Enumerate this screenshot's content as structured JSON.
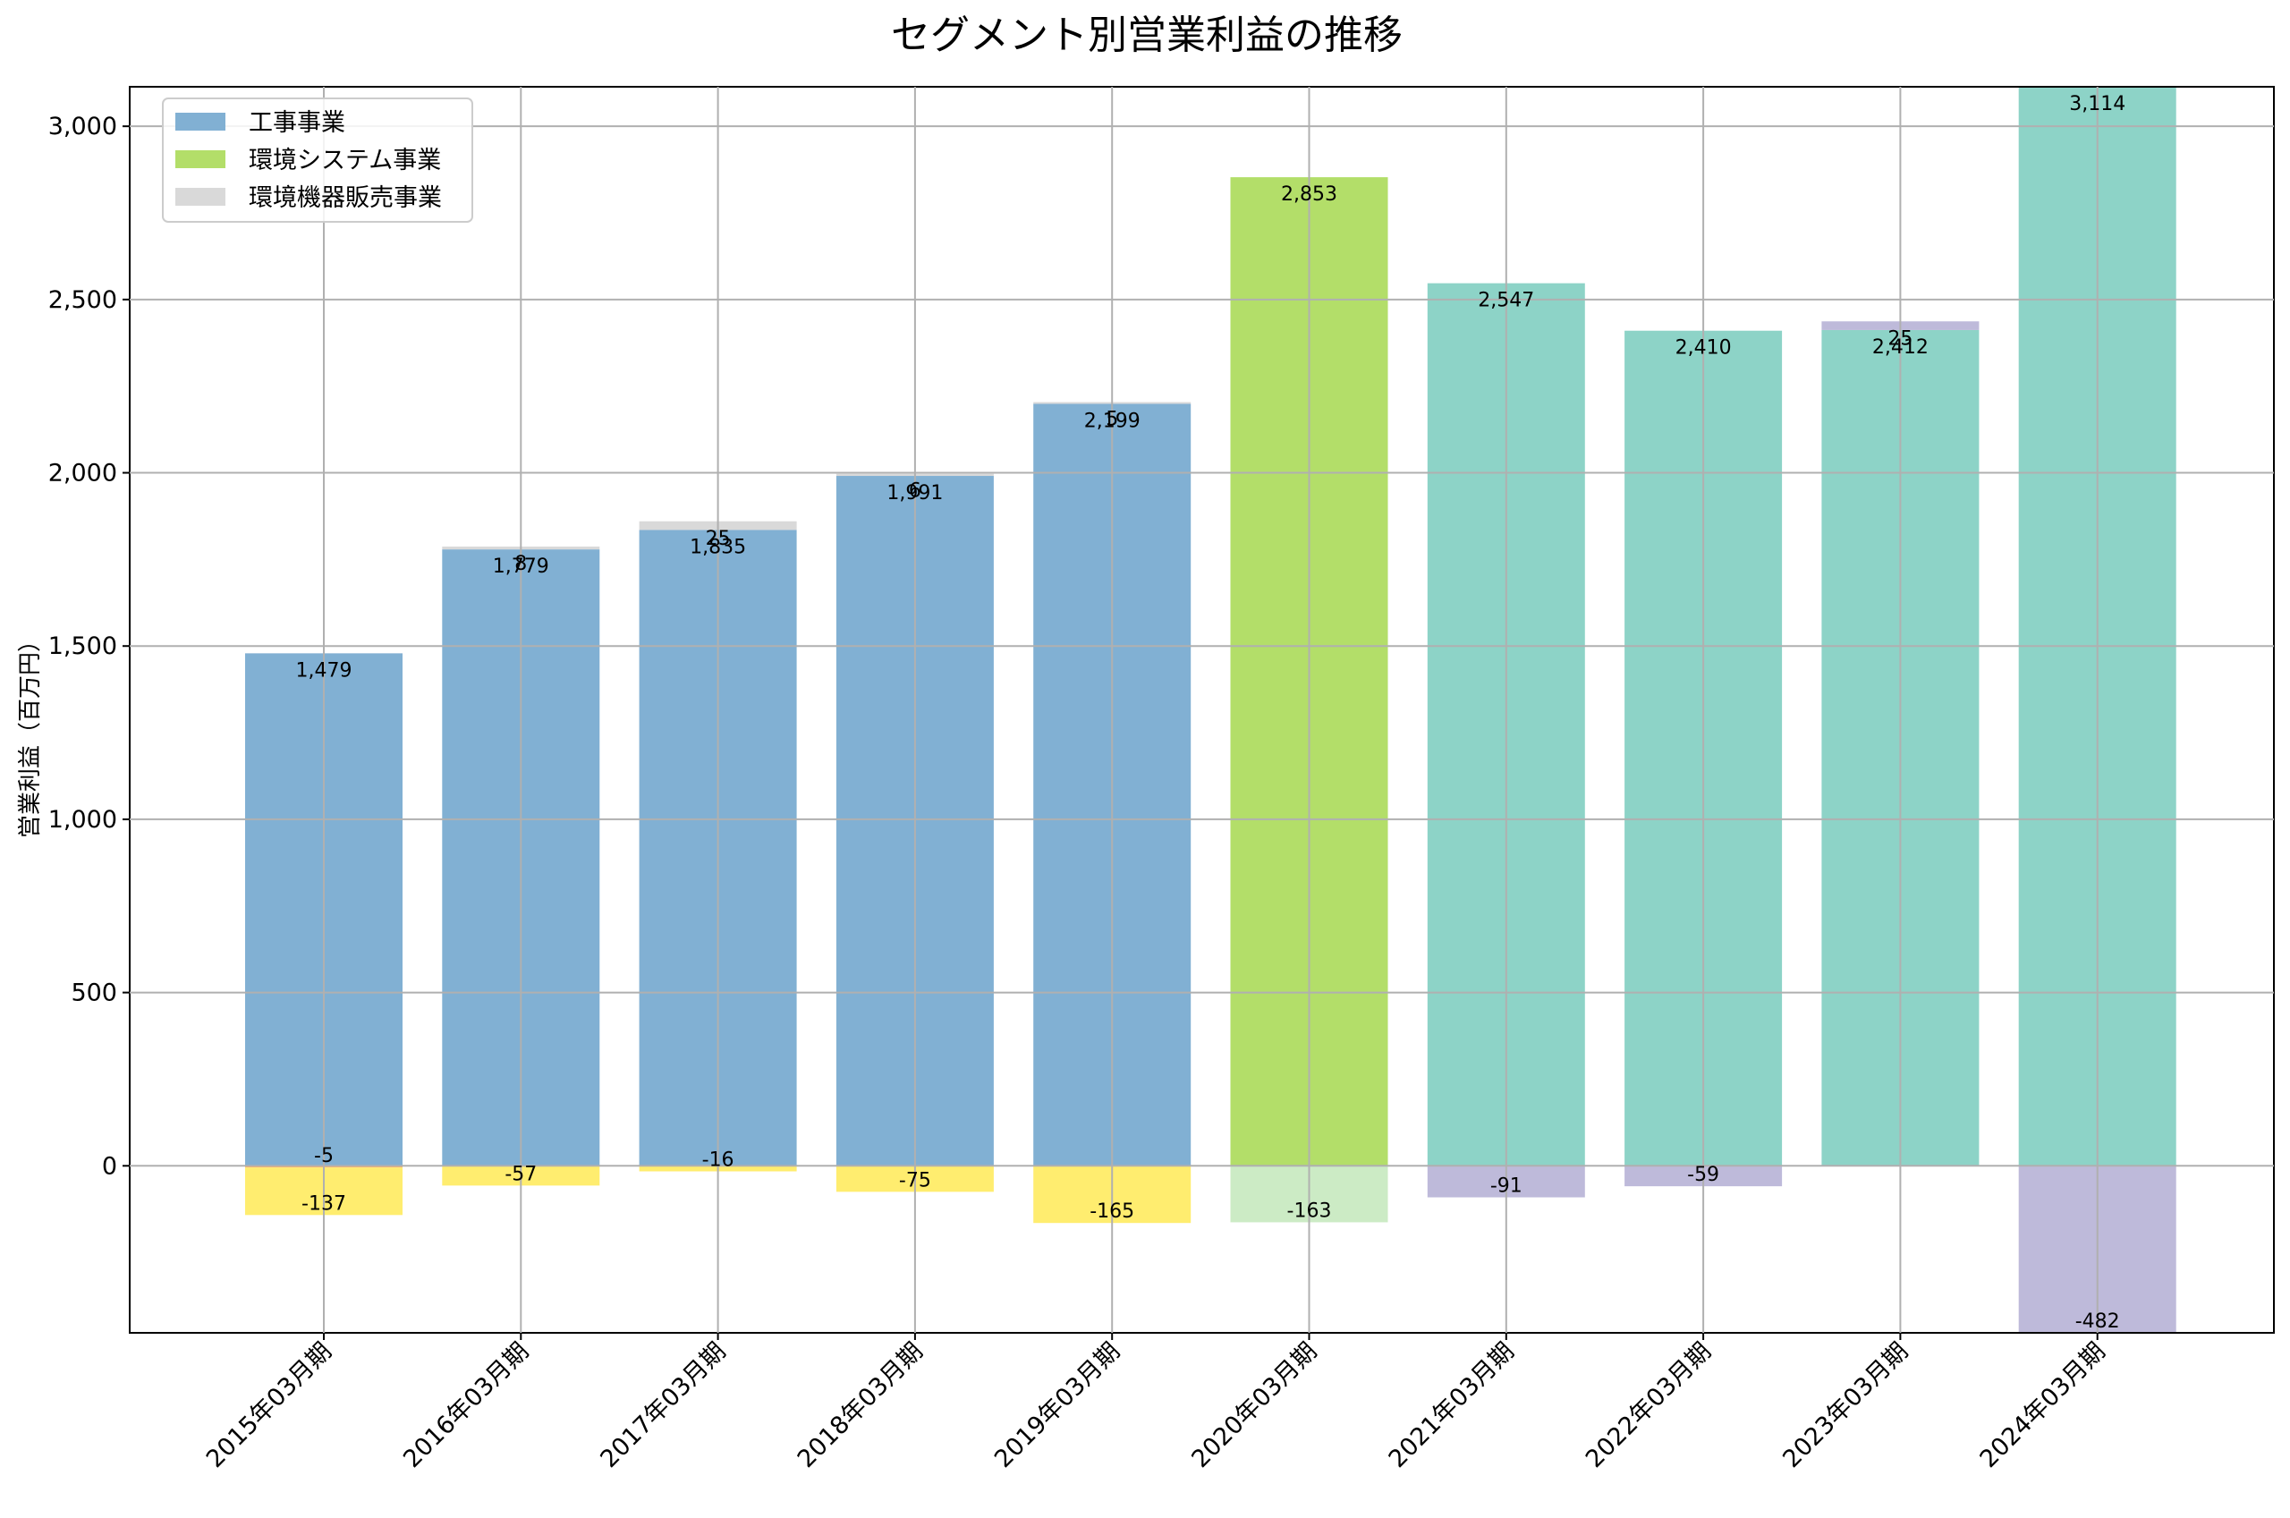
{
  "chart_data": {
    "type": "bar",
    "stacked": true,
    "title": "セグメント別営業利益の推移",
    "xlabel": "",
    "ylabel": "営業利益（百万円）",
    "ylim": [
      -482,
      3114
    ],
    "yticks": [
      0,
      500,
      1000,
      1500,
      2000,
      2500,
      3000
    ],
    "ytick_labels": [
      "0",
      "500",
      "1,000",
      "1,500",
      "2,000",
      "2,500",
      "3,000"
    ],
    "grid": true,
    "legend_position": "top-left",
    "categories": [
      "2015年03月期",
      "2016年03月期",
      "2017年03月期",
      "2018年03月期",
      "2019年03月期",
      "2020年03月期",
      "2021年03月期",
      "2022年03月期",
      "2023年03月期",
      "2024年03月期"
    ],
    "legend": [
      {
        "label": "工事事業",
        "color": "#81b0d3"
      },
      {
        "label": "環境システム事業",
        "color": "#b3de69"
      },
      {
        "label": "環境機器販売事業",
        "color": "#d9d9d9"
      }
    ],
    "segments": [
      {
        "category": 0,
        "value": 1479,
        "color": "#81b0d3",
        "label": "1,479"
      },
      {
        "category": 0,
        "value": -5,
        "color": "#fdb462",
        "label": "-5"
      },
      {
        "category": 0,
        "value": -137,
        "color": "#ffed6f",
        "label": "-137"
      },
      {
        "category": 1,
        "value": 1779,
        "color": "#81b0d3",
        "label": "1,779"
      },
      {
        "category": 1,
        "value": 8,
        "color": "#d9d9d9",
        "label": "8"
      },
      {
        "category": 1,
        "value": -57,
        "color": "#ffed6f",
        "label": "-57"
      },
      {
        "category": 2,
        "value": 1835,
        "color": "#81b0d3",
        "label": "1,835"
      },
      {
        "category": 2,
        "value": 25,
        "color": "#d9d9d9",
        "label": "25"
      },
      {
        "category": 2,
        "value": -16,
        "color": "#ffed6f",
        "label": "-16"
      },
      {
        "category": 3,
        "value": 1991,
        "color": "#81b0d3",
        "label": "1,991"
      },
      {
        "category": 3,
        "value": 6,
        "color": "#d9d9d9",
        "label": "6"
      },
      {
        "category": 3,
        "value": -75,
        "color": "#ffed6f",
        "label": "-75"
      },
      {
        "category": 4,
        "value": 2199,
        "color": "#81b0d3",
        "label": "2,199"
      },
      {
        "category": 4,
        "value": 5,
        "color": "#d9d9d9",
        "label": "5"
      },
      {
        "category": 4,
        "value": -165,
        "color": "#ffed6f",
        "label": "-165"
      },
      {
        "category": 5,
        "value": 2853,
        "color": "#b3de69",
        "label": "2,853"
      },
      {
        "category": 5,
        "value": -163,
        "color": "#ccebc5",
        "label": "-163"
      },
      {
        "category": 6,
        "value": 2547,
        "color": "#8dd3c7",
        "label": "2,547"
      },
      {
        "category": 6,
        "value": -91,
        "color": "#bebada",
        "label": "-91"
      },
      {
        "category": 7,
        "value": 2410,
        "color": "#8dd3c7",
        "label": "2,410"
      },
      {
        "category": 7,
        "value": -59,
        "color": "#bebada",
        "label": "-59"
      },
      {
        "category": 8,
        "value": 2412,
        "color": "#8dd3c7",
        "label": "2,412"
      },
      {
        "category": 8,
        "value": 25,
        "color": "#bebada",
        "label": "25"
      },
      {
        "category": 9,
        "value": 3114,
        "color": "#8dd3c7",
        "label": "3,114"
      },
      {
        "category": 9,
        "value": -482,
        "color": "#bebada",
        "label": "-482"
      }
    ]
  }
}
